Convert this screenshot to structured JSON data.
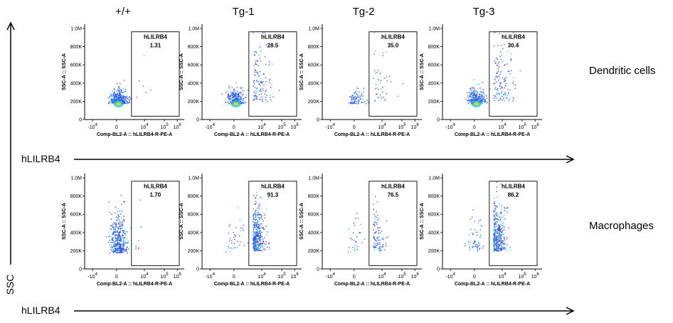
{
  "columns": [
    "+/+",
    "Tg-1",
    "Tg-2",
    "Tg-3"
  ],
  "rows": [
    {
      "name": "Dendritic cells"
    },
    {
      "name": "Macrophages"
    }
  ],
  "axis_labels": {
    "horizontal": "hLILRB4",
    "vertical": "SSC"
  },
  "colors": {
    "axis": "#000000",
    "dot_low": "#3a46d8",
    "dot_high": "#18c8e8",
    "hot": "#e0d020",
    "gate": "#000000"
  },
  "chart_data": [
    {
      "type": "scatter",
      "row": "Dendritic cells",
      "column": "+/+",
      "xlabel": "Comp-BL2-A :: hLILRB4-R-PE-A",
      "ylabel": "SSC-A :: SSC-A",
      "gate_label": "hLILRB4",
      "gate_value": "1.31",
      "x_ticks": [
        "-10^4",
        "0",
        "10^4",
        "10^5",
        "10^6"
      ],
      "y_ticks": [
        "0",
        "200K",
        "400K",
        "600K",
        "800K",
        "1.0M"
      ],
      "ylim": [
        0,
        1000000
      ],
      "hotspot": true
    },
    {
      "type": "scatter",
      "row": "Dendritic cells",
      "column": "Tg-1",
      "xlabel": "Comp-BL2-A :: hLILRB4-R-PE-A",
      "ylabel": "SSC-A :: SSC-A",
      "gate_label": "hLILRB4",
      "gate_value": "28.5",
      "x_ticks": [
        "-10^4",
        "0",
        "10^4",
        "10^5",
        "10^6"
      ],
      "y_ticks": [
        "0",
        "200K",
        "400K",
        "600K",
        "800K",
        "1.0M"
      ],
      "ylim": [
        0,
        1000000
      ],
      "hotspot": true
    },
    {
      "type": "scatter",
      "row": "Dendritic cells",
      "column": "Tg-2",
      "xlabel": "Comp-BL2-A :: hLILRB4-R-PE-A",
      "ylabel": "SSC-A :: SSC-A",
      "gate_label": "hLILRB4",
      "gate_value": "35.0",
      "x_ticks": [
        "-10^4",
        "0",
        "10^4",
        "10^5",
        "10^6"
      ],
      "y_ticks": [
        "0",
        "200K",
        "400K",
        "600K",
        "800K",
        "1.0M"
      ],
      "ylim": [
        0,
        1000000
      ],
      "hotspot": false
    },
    {
      "type": "scatter",
      "row": "Dendritic cells",
      "column": "Tg-3",
      "xlabel": "Comp-BL2-A :: hLILRB4-R-PE-A",
      "ylabel": "SSC-A :: SSC-A",
      "gate_label": "hLILRB4",
      "gate_value": "30.4",
      "x_ticks": [
        "-10^4",
        "0",
        "10^4",
        "10^5",
        "10^6"
      ],
      "y_ticks": [
        "0",
        "200K",
        "400K",
        "600K",
        "800K",
        "1.0M"
      ],
      "ylim": [
        0,
        1000000
      ],
      "hotspot": true
    },
    {
      "type": "scatter",
      "row": "Macrophages",
      "column": "+/+",
      "xlabel": "Comp-BL2-A :: hLILRB4-R-PE-A",
      "ylabel": "SSC-A :: SSC-A",
      "gate_label": "hLILRB4",
      "gate_value": "1.70",
      "x_ticks": [
        "-10^4",
        "0",
        "10^4",
        "10^5",
        "10^6"
      ],
      "y_ticks": [
        "0",
        "200K",
        "400K",
        "600K",
        "800K",
        "1.0M"
      ],
      "ylim": [
        0,
        1000000
      ],
      "hotspot": false
    },
    {
      "type": "scatter",
      "row": "Macrophages",
      "column": "Tg-1",
      "xlabel": "Comp-BL2-A :: hLILRB4-R-PE-A",
      "ylabel": "SSC-A :: SSC-A",
      "gate_label": "hLILRB4",
      "gate_value": "91.3",
      "x_ticks": [
        "-10^4",
        "0",
        "10^4",
        "10^5",
        "10^6"
      ],
      "y_ticks": [
        "0",
        "200K",
        "400K",
        "600K",
        "800K",
        "1.0M"
      ],
      "ylim": [
        0,
        1000000
      ],
      "hotspot": false
    },
    {
      "type": "scatter",
      "row": "Macrophages",
      "column": "Tg-2",
      "xlabel": "Comp-BL2-A :: hLILRB4-R-PE-A",
      "ylabel": "SSC-A :: SSC-A",
      "gate_label": "hLILRB4",
      "gate_value": "76.5",
      "x_ticks": [
        "-10^4",
        "0",
        "10^4",
        "10^5",
        "10^6"
      ],
      "y_ticks": [
        "0",
        "200K",
        "400K",
        "600K",
        "800K",
        "1.0M"
      ],
      "ylim": [
        0,
        1000000
      ],
      "hotspot": false
    },
    {
      "type": "scatter",
      "row": "Macrophages",
      "column": "Tg-3",
      "xlabel": "Comp-BL2-A :: hLILRB4-R-PE-A",
      "ylabel": "SSC-A :: SSC-A",
      "gate_label": "hLILRB4",
      "gate_value": "86.2",
      "x_ticks": [
        "-10^4",
        "0",
        "10^4",
        "10^5",
        "10^6"
      ],
      "y_ticks": [
        "0",
        "200K",
        "400K",
        "600K",
        "800K",
        "1.0M"
      ],
      "ylim": [
        0,
        1000000
      ],
      "hotspot": false
    }
  ]
}
